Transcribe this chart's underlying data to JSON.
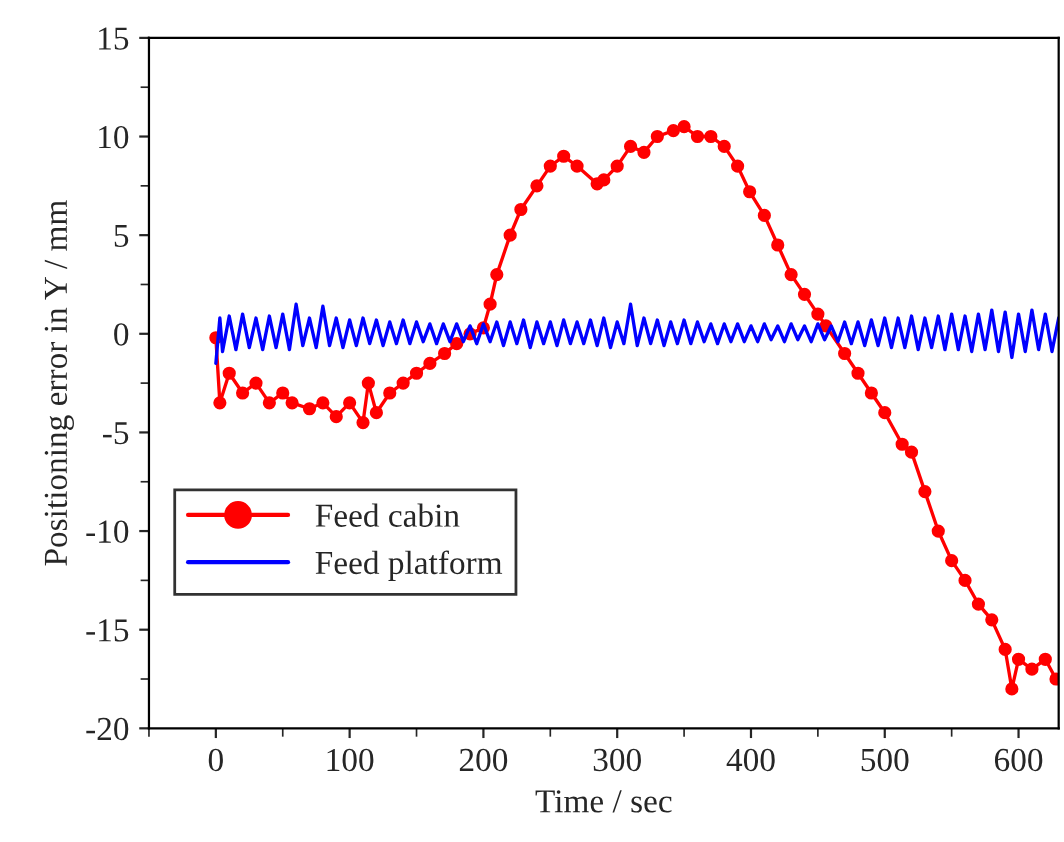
{
  "chart_data": {
    "type": "line",
    "xlabel": "Time / sec",
    "ylabel": "Positioning error in Y / mm",
    "xlim": [
      -50,
      630
    ],
    "xticks": [
      0,
      100,
      200,
      300,
      400,
      500,
      600
    ],
    "ylim": [
      -20,
      15
    ],
    "yticks": [
      -20,
      -15,
      -10,
      -5,
      0,
      5,
      10,
      15
    ],
    "grid": false,
    "legend": "lower left",
    "series": [
      {
        "name": "Feed cabin",
        "color": "#ff0000",
        "marker": "circle",
        "line_style": "solid",
        "x": [
          0,
          3,
          10,
          20,
          30,
          40,
          50,
          57,
          70,
          80,
          90,
          100,
          110,
          114,
          120,
          130,
          140,
          150,
          160,
          171,
          180,
          190,
          200,
          205,
          210,
          220,
          228,
          240,
          250,
          260,
          270,
          285,
          290,
          300,
          310,
          320,
          330,
          342,
          350,
          360,
          370,
          380,
          390,
          399,
          410,
          420,
          430,
          440,
          450,
          456,
          470,
          480,
          490,
          500,
          513,
          520,
          530,
          540,
          550,
          560,
          570,
          580,
          590,
          595,
          600,
          610,
          620,
          628
        ],
        "values": [
          -0.2,
          -3.5,
          -2,
          -3,
          -2.5,
          -3.5,
          -3,
          -3.5,
          -3.8,
          -3.5,
          -4.2,
          -3.5,
          -4.5,
          -2.5,
          -4,
          -3,
          -2.5,
          -2,
          -1.5,
          -1,
          -0.5,
          0,
          0.3,
          1.5,
          3,
          5,
          6.3,
          7.5,
          8.5,
          9,
          8.5,
          7.6,
          7.8,
          8.5,
          9.5,
          9.2,
          10,
          10.3,
          10.5,
          10,
          10,
          9.5,
          8.5,
          7.2,
          6,
          4.5,
          3,
          2,
          1,
          0.4,
          -1,
          -2,
          -3,
          -4,
          -5.6,
          -6,
          -8,
          -10,
          -11.5,
          -12.5,
          -13.7,
          -14.5,
          -16,
          -18,
          -16.5,
          -17,
          -16.5,
          -17.5
        ]
      },
      {
        "name": "Feed platform",
        "color": "#0000ff",
        "marker": "none",
        "line_style": "solid",
        "x": [
          0,
          3,
          5,
          10,
          15,
          20,
          25,
          30,
          35,
          40,
          45,
          50,
          55,
          60,
          65,
          70,
          75,
          80,
          85,
          90,
          95,
          100,
          105,
          110,
          115,
          120,
          125,
          130,
          135,
          140,
          145,
          150,
          155,
          160,
          165,
          170,
          175,
          180,
          185,
          190,
          195,
          200,
          205,
          210,
          215,
          220,
          225,
          230,
          235,
          240,
          245,
          250,
          255,
          260,
          265,
          270,
          275,
          280,
          285,
          290,
          295,
          300,
          305,
          310,
          315,
          320,
          325,
          330,
          335,
          340,
          345,
          350,
          355,
          360,
          365,
          370,
          375,
          380,
          385,
          390,
          395,
          400,
          405,
          410,
          415,
          420,
          425,
          430,
          435,
          440,
          445,
          450,
          455,
          460,
          465,
          470,
          475,
          480,
          485,
          490,
          495,
          500,
          505,
          510,
          515,
          520,
          525,
          530,
          535,
          540,
          545,
          550,
          555,
          560,
          565,
          570,
          575,
          580,
          585,
          590,
          595,
          600,
          605,
          610,
          615,
          620,
          625,
          630
        ],
        "values": [
          -1.5,
          0.8,
          -0.9,
          0.9,
          -0.8,
          1.0,
          -0.7,
          0.8,
          -0.8,
          0.9,
          -0.7,
          1.0,
          -0.8,
          1.5,
          -0.6,
          0.8,
          -0.7,
          1.4,
          -0.6,
          0.8,
          -0.7,
          0.7,
          -0.6,
          0.8,
          -0.5,
          0.7,
          -0.6,
          0.6,
          -0.5,
          0.7,
          -0.5,
          0.6,
          -0.4,
          0.5,
          -0.5,
          0.5,
          -0.4,
          0.5,
          -0.4,
          0.4,
          -0.5,
          0.5,
          -0.4,
          0.6,
          -0.6,
          0.6,
          -0.5,
          0.7,
          -0.7,
          0.6,
          -0.5,
          0.6,
          -0.6,
          0.7,
          -0.5,
          0.6,
          -0.5,
          0.7,
          -0.6,
          0.8,
          -0.7,
          0.6,
          -0.5,
          1.5,
          -0.6,
          0.8,
          -0.5,
          0.7,
          -0.6,
          0.6,
          -0.5,
          0.7,
          -0.5,
          0.6,
          -0.4,
          0.5,
          -0.5,
          0.5,
          -0.4,
          0.5,
          -0.4,
          0.4,
          -0.4,
          0.5,
          -0.3,
          0.4,
          -0.4,
          0.5,
          -0.3,
          0.4,
          -0.4,
          0.5,
          -0.3,
          0.4,
          -0.4,
          0.6,
          -0.5,
          0.6,
          -0.6,
          0.7,
          -0.6,
          0.8,
          -0.7,
          0.8,
          -0.7,
          0.9,
          -0.8,
          0.8,
          -0.7,
          0.9,
          -0.8,
          1.0,
          -0.8,
          0.9,
          -0.9,
          1.0,
          -0.8,
          1.2,
          -0.9,
          1.1,
          -1.2,
          1.0,
          -0.9,
          1.2,
          -0.8,
          1.0,
          -0.9,
          0.8
        ]
      }
    ]
  }
}
